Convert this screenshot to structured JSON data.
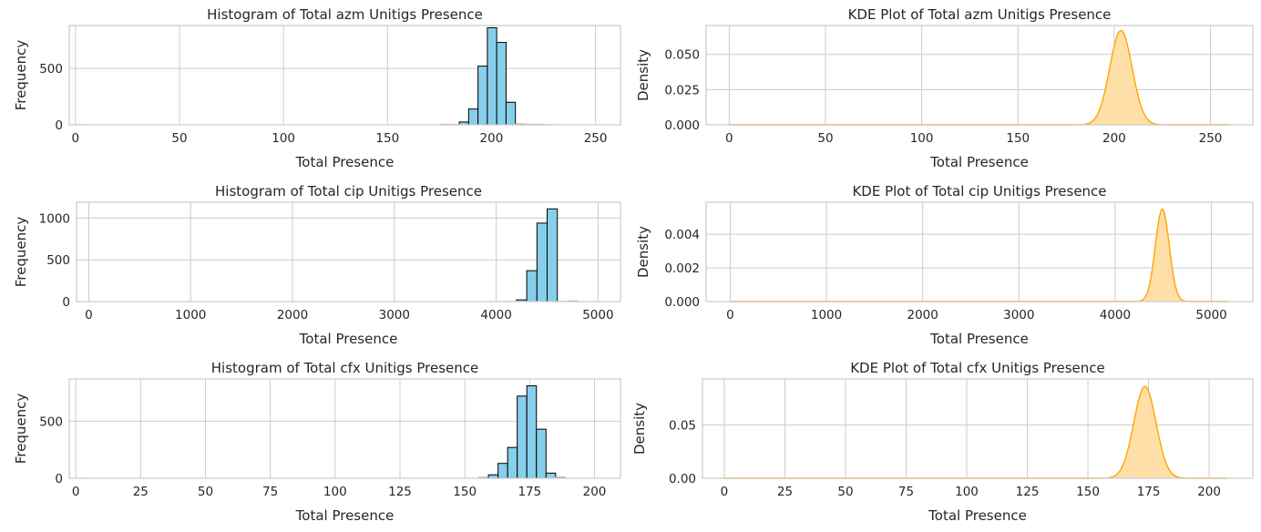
{
  "chart_data": [
    {
      "type": "bar",
      "title": "Histogram of Total azm Unitigs Presence",
      "xlabel": "Total Presence",
      "ylabel": "Frequency",
      "xlim": [
        -3,
        262
      ],
      "ylim": [
        0,
        880
      ],
      "xticks": [
        0,
        50,
        100,
        150,
        200,
        250
      ],
      "yticks": [
        0,
        500
      ],
      "bin_width": 4.5,
      "bin_starts": [
        0,
        4.5,
        9,
        13.5,
        18,
        22.5,
        27,
        31.5,
        36,
        40.5,
        45,
        49.5,
        54,
        58.5,
        63,
        67.5,
        72,
        76.5,
        81,
        85.5,
        90,
        94.5,
        99,
        103.5,
        108,
        112.5,
        117,
        121.5,
        126,
        130.5,
        135,
        139.5,
        144,
        148.5,
        153,
        157.5,
        162,
        166.5,
        171,
        175.5,
        180,
        184.5,
        189,
        193.5,
        198,
        202.5,
        207,
        211.5,
        216,
        220.5,
        225
      ],
      "values": [
        1,
        0,
        0,
        0,
        0,
        0,
        0,
        0,
        0,
        0,
        0,
        0,
        0,
        0,
        0,
        0,
        0,
        0,
        0,
        0,
        0,
        0,
        0,
        0,
        0,
        0,
        0,
        0,
        0,
        0,
        0,
        0,
        0,
        0,
        0,
        0,
        0,
        0,
        0,
        5,
        3,
        25,
        140,
        520,
        860,
        730,
        200,
        8,
        5,
        5,
        2
      ]
    },
    {
      "type": "area",
      "title": "KDE Plot of Total azm Unitigs Presence",
      "xlabel": "Total Presence",
      "ylabel": "Density",
      "xlim": [
        -12,
        272
      ],
      "ylim": [
        0,
        0.0705
      ],
      "xticks": [
        0,
        50,
        100,
        150,
        200,
        250
      ],
      "yticks": [
        0.0,
        0.025,
        0.05
      ],
      "ytick_labels": [
        "0.000",
        "0.025",
        "0.050"
      ],
      "mean": 203.5,
      "sd": 5.8,
      "peak": 0.067,
      "x_range": [
        0,
        260
      ]
    },
    {
      "type": "bar",
      "title": "Histogram of Total cip Unitigs Presence",
      "xlabel": "Total Presence",
      "ylabel": "Frequency",
      "xlim": [
        -120,
        5220
      ],
      "ylim": [
        0,
        1190
      ],
      "xticks": [
        0,
        1000,
        2000,
        3000,
        4000,
        5000
      ],
      "yticks": [
        0,
        500,
        1000
      ],
      "bin_width": 100,
      "bin_starts": [
        0,
        100,
        200,
        300,
        400,
        500,
        600,
        700,
        800,
        900,
        1000,
        1100,
        1200,
        1300,
        1400,
        1500,
        1600,
        1700,
        1800,
        1900,
        2000,
        2100,
        2200,
        2300,
        2400,
        2500,
        2600,
        2700,
        2800,
        2900,
        3000,
        3100,
        3200,
        3300,
        3400,
        3500,
        3600,
        3700,
        3800,
        3900,
        4000,
        4100,
        4200,
        4300,
        4400,
        4500,
        4600,
        4700,
        4800,
        4900,
        5000
      ],
      "values": [
        0,
        0,
        0,
        0,
        0,
        0,
        0,
        0,
        0,
        0,
        0,
        0,
        0,
        0,
        0,
        0,
        0,
        0,
        0,
        0,
        0,
        0,
        0,
        0,
        0,
        0,
        0,
        0,
        0,
        0,
        0,
        0,
        0,
        0,
        0,
        0,
        0,
        0,
        0,
        0,
        1,
        2,
        20,
        370,
        940,
        1110,
        2,
        8,
        0,
        0,
        0
      ]
    },
    {
      "type": "area",
      "title": "KDE Plot of Total cip Unitigs Presence",
      "xlabel": "Total Presence",
      "ylabel": "Density",
      "xlim": [
        -250,
        5430
      ],
      "ylim": [
        0,
        0.0059
      ],
      "xticks": [
        0,
        1000,
        2000,
        3000,
        4000,
        5000
      ],
      "yticks": [
        0.0,
        0.002,
        0.004
      ],
      "ytick_labels": [
        "0.000",
        "0.002",
        "0.004"
      ],
      "mean": 4490,
      "sd": 72,
      "peak": 0.0055,
      "x_range": [
        0,
        5170
      ]
    },
    {
      "type": "bar",
      "title": "Histogram of Total cfx Unitigs Presence",
      "xlabel": "Total Presence",
      "ylabel": "Frequency",
      "xlim": [
        -2.5,
        210
      ],
      "ylim": [
        0,
        870
      ],
      "xticks": [
        0,
        25,
        50,
        75,
        100,
        125,
        150,
        175,
        200
      ],
      "yticks": [
        0,
        500
      ],
      "bin_width": 3.7,
      "bin_starts": [
        0,
        3.7,
        7.4,
        11.1,
        14.8,
        18.5,
        22.2,
        25.9,
        29.6,
        33.3,
        37,
        40.7,
        44.4,
        48.1,
        51.8,
        55.5,
        59.2,
        62.9,
        66.6,
        70.3,
        74,
        77.7,
        81.4,
        85.1,
        88.8,
        92.5,
        96.2,
        99.9,
        103.6,
        107.3,
        111,
        114.7,
        118.4,
        122.1,
        125.8,
        129.5,
        133.2,
        136.9,
        140.6,
        144.3,
        148,
        151.7,
        155.4,
        159.1,
        162.8,
        166.5,
        170.2,
        173.9,
        177.6,
        181.3,
        185
      ],
      "values": [
        1,
        0,
        0,
        0,
        0,
        0,
        0,
        0,
        0,
        0,
        0,
        0,
        0,
        0,
        0,
        0,
        0,
        0,
        0,
        0,
        0,
        0,
        0,
        0,
        0,
        0,
        0,
        0,
        0,
        0,
        0,
        0,
        0,
        0,
        0,
        0,
        0,
        0,
        0,
        0,
        0,
        0,
        8,
        30,
        130,
        270,
        720,
        810,
        430,
        45,
        10
      ]
    },
    {
      "type": "area",
      "title": "KDE Plot of Total cfx Unitigs Presence",
      "xlabel": "Total Presence",
      "ylabel": "Density",
      "xlim": [
        -9,
        218
      ],
      "ylim": [
        0,
        0.093
      ],
      "xticks": [
        0,
        25,
        50,
        75,
        100,
        125,
        150,
        175,
        200
      ],
      "yticks": [
        0.0,
        0.05
      ],
      "ytick_labels": [
        "0.00",
        "0.05"
      ],
      "mean": 173.5,
      "sd": 4.6,
      "peak": 0.086,
      "x_range": [
        0,
        207
      ]
    }
  ],
  "colors": {
    "hist_fill": "#87ceeb",
    "hist_edge": "#000000",
    "kde_line": "#ffa500",
    "kde_fill": "#ffdfa8",
    "grid": "#cccccc"
  }
}
